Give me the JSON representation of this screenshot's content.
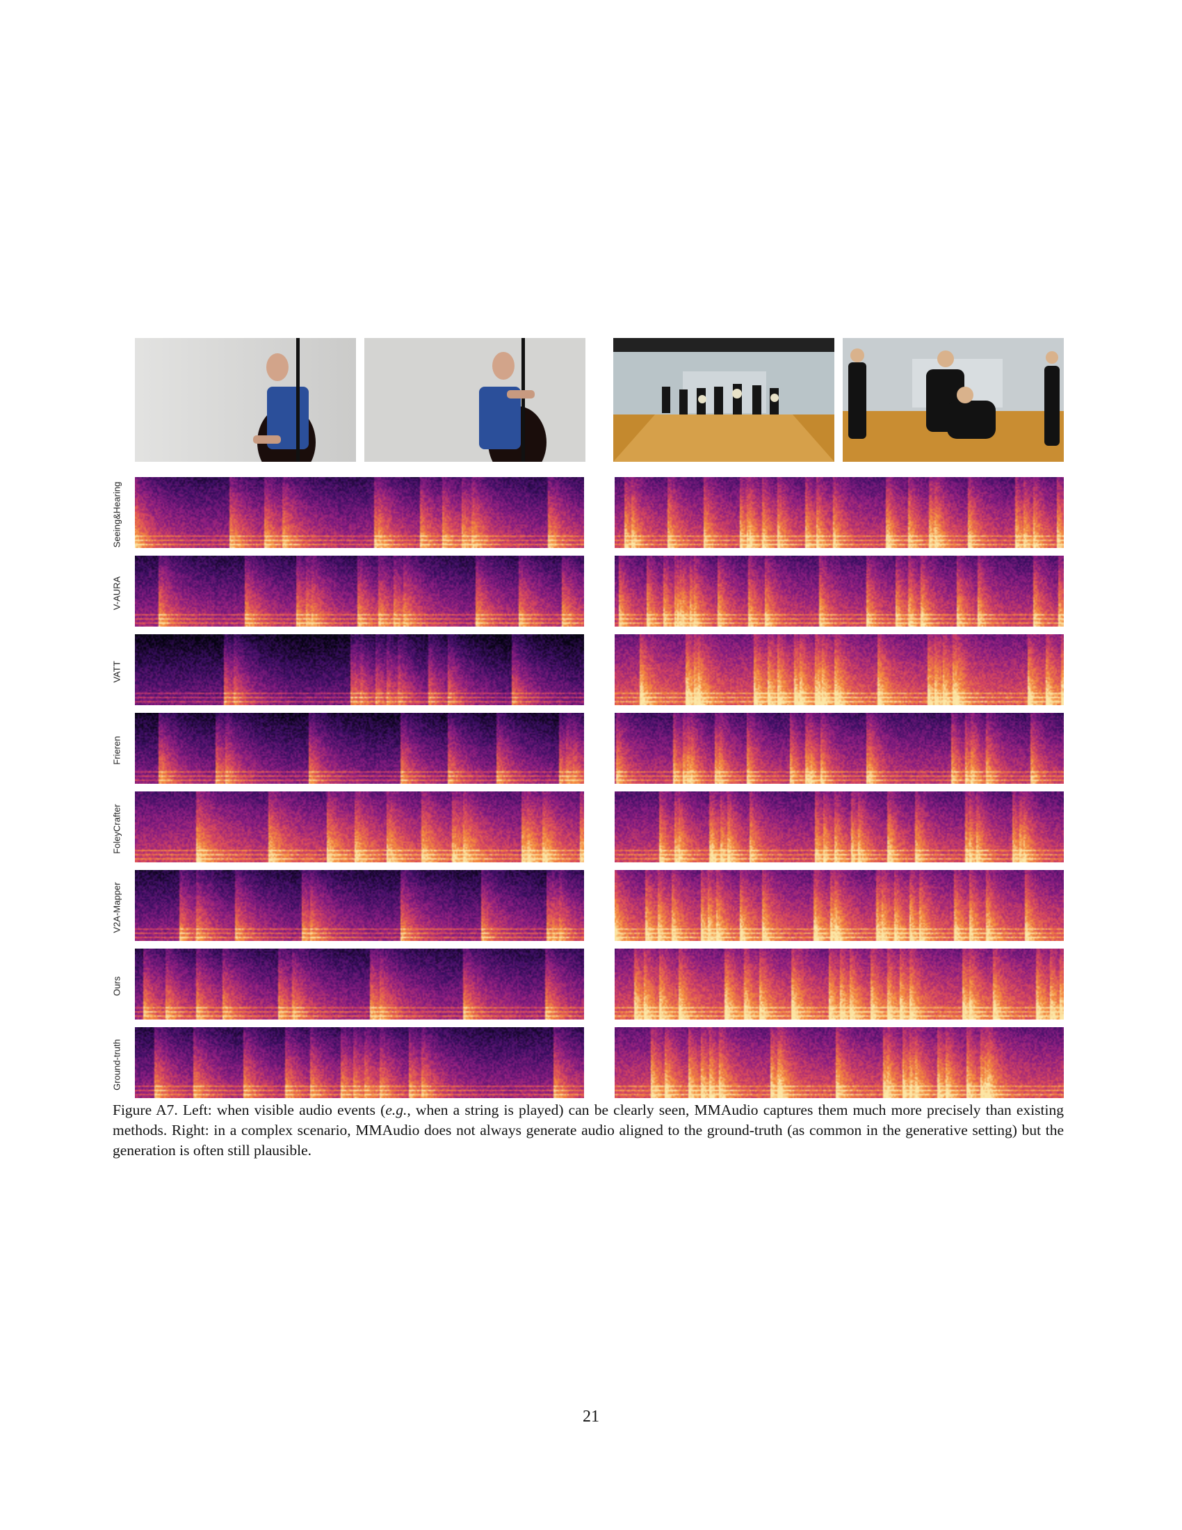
{
  "figure": {
    "rows": [
      {
        "label": "Seeing&Hearing"
      },
      {
        "label": "V-AURA"
      },
      {
        "label": "VATT"
      },
      {
        "label": "Frieren"
      },
      {
        "label": "FoleyCrafter"
      },
      {
        "label": "V2A-Mapper"
      },
      {
        "label": "Ours"
      },
      {
        "label": "Ground-truth"
      }
    ],
    "frames": [
      "bass-player-frame-1",
      "bass-player-frame-2",
      "dance-hall-frame-1",
      "dance-hall-frame-2"
    ],
    "colors": {
      "spectrogram_low": "#05030f",
      "spectrogram_mid": "#7a1f8a",
      "spectrogram_high": "#f48a3a",
      "spectrogram_peak": "#fce8a8"
    }
  },
  "caption": {
    "label": "Figure A7.",
    "part1": " Left: when visible audio events (",
    "eg": "e.g.",
    "part2": ", when a string is played) can be clearly seen, MMAudio captures them much more precisely than existing methods. Right: in a complex scenario, MMAudio does not always generate audio aligned to the ground-truth (as common in the generative setting) but the generation is often still plausible."
  },
  "page_number": "21"
}
